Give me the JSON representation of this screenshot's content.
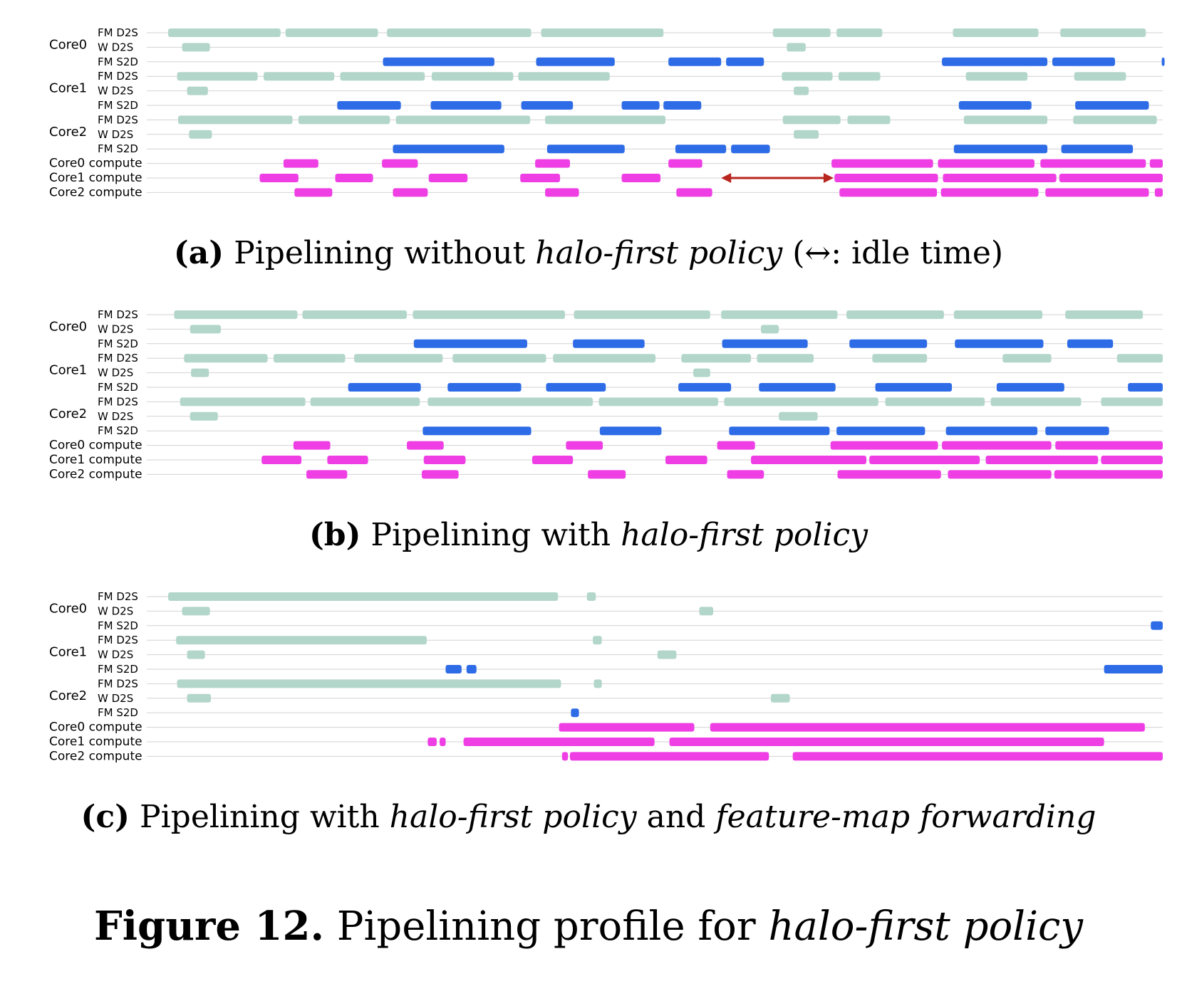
{
  "colors": {
    "fm_d2s": "#b3d6cb",
    "w_d2s": "#b3d6cb",
    "fm_s2d": "#2e6be6",
    "compute": "#ee3ee4",
    "gridline": "#d2d2d2",
    "arrow": "#b8261e"
  },
  "row_labels": [
    "FM D2S",
    "W D2S",
    "FM S2D",
    "FM D2S",
    "W D2S",
    "FM S2D",
    "FM D2S",
    "W D2S",
    "FM S2D",
    "Core0 compute",
    "Core1 compute",
    "Core2 compute"
  ],
  "core_labels": [
    "Core0",
    "Core1",
    "Core2"
  ],
  "figure": {
    "label": "Figure 12.",
    "title_plain": "Pipelining profile for",
    "title_italic": "halo-first policy"
  },
  "panels": [
    {
      "caption": {
        "label": "(a)",
        "text1": "Pipelining without",
        "italic1": "halo-first policy",
        "text2": "(↔: idle time)",
        "italic2": "",
        "text3": ""
      }
    },
    {
      "caption": {
        "label": "(b)",
        "text1": "Pipelining with",
        "italic1": "halo-first policy",
        "text2": "",
        "italic2": "",
        "text3": ""
      }
    },
    {
      "caption": {
        "label": "(c)",
        "text1": "Pipelining with",
        "italic1": "halo-first policy",
        "text2": "and",
        "italic2": "feature-map forwarding",
        "text3": ""
      }
    }
  ],
  "chart_data": [
    {
      "type": "gantt",
      "x_range": [
        0,
        1000
      ],
      "rows": [
        {
          "core": "Core0",
          "name": "FM D2S",
          "type": "fm_d2s",
          "segments": [
            [
              0,
              113
            ],
            [
              118,
              211
            ],
            [
              220,
              365
            ],
            [
              375,
              498
            ],
            [
              608,
              666
            ],
            [
              672,
              718
            ],
            [
              789,
              875
            ],
            [
              897,
              983
            ]
          ]
        },
        {
          "core": "Core0",
          "name": "W D2S",
          "type": "w_d2s",
          "segments": [
            [
              14,
              42
            ],
            [
              622,
              641
            ]
          ]
        },
        {
          "core": "Core0",
          "name": "FM S2D",
          "type": "fm_s2d",
          "segments": [
            [
              216,
              328
            ],
            [
              370,
              449
            ],
            [
              503,
              556
            ],
            [
              561,
              599
            ],
            [
              778,
              884
            ],
            [
              889,
              952
            ],
            [
              999,
              1000
            ]
          ]
        },
        {
          "core": "Core1",
          "name": "FM D2S",
          "type": "fm_d2s",
          "segments": [
            [
              9,
              90
            ],
            [
              96,
              167
            ],
            [
              173,
              258
            ],
            [
              265,
              347
            ],
            [
              352,
              444
            ],
            [
              617,
              668
            ],
            [
              674,
              716
            ],
            [
              802,
              864
            ],
            [
              911,
              963
            ]
          ]
        },
        {
          "core": "Core1",
          "name": "W D2S",
          "type": "w_d2s",
          "segments": [
            [
              19,
              40
            ],
            [
              629,
              644
            ]
          ]
        },
        {
          "core": "Core1",
          "name": "FM S2D",
          "type": "fm_s2d",
          "segments": [
            [
              170,
              234
            ],
            [
              264,
              335
            ],
            [
              355,
              407
            ],
            [
              456,
              494
            ],
            [
              498,
              536
            ],
            [
              795,
              868
            ],
            [
              912,
              986
            ]
          ]
        },
        {
          "core": "Core2",
          "name": "FM D2S",
          "type": "fm_d2s",
          "segments": [
            [
              10,
              125
            ],
            [
              131,
              223
            ],
            [
              229,
              364
            ],
            [
              379,
              500
            ],
            [
              618,
              676
            ],
            [
              683,
              726
            ],
            [
              800,
              884
            ],
            [
              910,
              994
            ]
          ]
        },
        {
          "core": "Core2",
          "name": "W D2S",
          "type": "w_d2s",
          "segments": [
            [
              21,
              44
            ],
            [
              629,
              654
            ]
          ]
        },
        {
          "core": "Core2",
          "name": "FM S2D",
          "type": "fm_s2d",
          "segments": [
            [
              226,
              338
            ],
            [
              381,
              459
            ],
            [
              510,
              561
            ],
            [
              566,
              605
            ],
            [
              790,
              884
            ],
            [
              898,
              970
            ]
          ]
        },
        {
          "core": "Core0",
          "name": "Core0 compute",
          "type": "compute",
          "segments": [
            [
              116,
              151
            ],
            [
              215,
              251
            ],
            [
              369,
              404
            ],
            [
              503,
              537
            ],
            [
              667,
              769
            ],
            [
              774,
              871
            ],
            [
              877,
              983
            ],
            [
              987,
              1000
            ]
          ]
        },
        {
          "core": "Core1",
          "name": "Core1 compute",
          "type": "compute",
          "segments": [
            [
              92,
              131
            ],
            [
              168,
              206
            ],
            [
              262,
              301
            ],
            [
              354,
              394
            ],
            [
              456,
              495
            ],
            [
              670,
              774
            ],
            [
              779,
              893
            ],
            [
              896,
              1000
            ]
          ]
        },
        {
          "core": "Core2",
          "name": "Core2 compute",
          "type": "compute",
          "segments": [
            [
              127,
              165
            ],
            [
              226,
              261
            ],
            [
              379,
              413
            ],
            [
              511,
              547
            ],
            [
              675,
              773
            ],
            [
              777,
              875
            ],
            [
              882,
              986
            ],
            [
              992,
              1000
            ]
          ]
        }
      ],
      "annotations": [
        {
          "type": "double-arrow",
          "row": "Core1 compute",
          "from": 556,
          "to": 669
        }
      ]
    },
    {
      "type": "gantt",
      "x_range": [
        0,
        1000
      ],
      "rows": [
        {
          "core": "Core0",
          "name": "FM D2S",
          "type": "fm_d2s",
          "segments": [
            [
              6,
              130
            ],
            [
              135,
              240
            ],
            [
              246,
              399
            ],
            [
              408,
              545
            ],
            [
              556,
              673
            ],
            [
              682,
              780
            ],
            [
              790,
              879
            ],
            [
              902,
              980
            ]
          ]
        },
        {
          "core": "Core0",
          "name": "W D2S",
          "type": "w_d2s",
          "segments": [
            [
              22,
              53
            ],
            [
              596,
              614
            ]
          ]
        },
        {
          "core": "Core0",
          "name": "FM S2D",
          "type": "fm_s2d",
          "segments": [
            [
              247,
              361
            ],
            [
              407,
              479
            ],
            [
              557,
              643
            ],
            [
              685,
              763
            ],
            [
              791,
              880
            ],
            [
              904,
              950
            ]
          ]
        },
        {
          "core": "Core1",
          "name": "FM D2S",
          "type": "fm_d2s",
          "segments": [
            [
              16,
              100
            ],
            [
              106,
              178
            ],
            [
              187,
              276
            ],
            [
              286,
              380
            ],
            [
              387,
              490
            ],
            [
              516,
              586
            ],
            [
              592,
              649
            ],
            [
              708,
              763
            ],
            [
              839,
              888
            ],
            [
              954,
              1000
            ]
          ]
        },
        {
          "core": "Core1",
          "name": "W D2S",
          "type": "w_d2s",
          "segments": [
            [
              23,
              41
            ],
            [
              528,
              545
            ]
          ]
        },
        {
          "core": "Core1",
          "name": "FM S2D",
          "type": "fm_s2d",
          "segments": [
            [
              181,
              254
            ],
            [
              281,
              355
            ],
            [
              380,
              440
            ],
            [
              513,
              566
            ],
            [
              594,
              671
            ],
            [
              711,
              788
            ],
            [
              833,
              901
            ],
            [
              965,
              1000
            ]
          ]
        },
        {
          "core": "Core2",
          "name": "FM D2S",
          "type": "fm_d2s",
          "segments": [
            [
              12,
              138
            ],
            [
              143,
              253
            ],
            [
              261,
              427
            ],
            [
              433,
              553
            ],
            [
              559,
              714
            ],
            [
              721,
              821
            ],
            [
              827,
              918
            ],
            [
              938,
              1000
            ]
          ]
        },
        {
          "core": "Core2",
          "name": "W D2S",
          "type": "w_d2s",
          "segments": [
            [
              22,
              50
            ],
            [
              614,
              653
            ]
          ]
        },
        {
          "core": "Core2",
          "name": "FM S2D",
          "type": "fm_s2d",
          "segments": [
            [
              256,
              365
            ],
            [
              434,
              496
            ],
            [
              564,
              665
            ],
            [
              672,
              761
            ],
            [
              782,
              874
            ],
            [
              882,
              946
            ]
          ]
        },
        {
          "core": "Core0",
          "name": "Core0 compute",
          "type": "compute",
          "segments": [
            [
              126,
              163
            ],
            [
              240,
              277
            ],
            [
              400,
              437
            ],
            [
              552,
              590
            ],
            [
              666,
              774
            ],
            [
              778,
              888
            ],
            [
              892,
              1000
            ]
          ]
        },
        {
          "core": "Core1",
          "name": "Core1 compute",
          "type": "compute",
          "segments": [
            [
              94,
              134
            ],
            [
              160,
              201
            ],
            [
              257,
              299
            ],
            [
              366,
              407
            ],
            [
              500,
              542
            ],
            [
              586,
              702
            ],
            [
              705,
              816
            ],
            [
              822,
              935
            ],
            [
              938,
              1000
            ]
          ]
        },
        {
          "core": "Core2",
          "name": "Core2 compute",
          "type": "compute",
          "segments": [
            [
              139,
              180
            ],
            [
              255,
              292
            ],
            [
              422,
              460
            ],
            [
              562,
              599
            ],
            [
              673,
              777
            ],
            [
              784,
              888
            ],
            [
              891,
              1000
            ]
          ]
        }
      ]
    },
    {
      "type": "gantt",
      "x_range": [
        0,
        1000
      ],
      "rows": [
        {
          "core": "Core0",
          "name": "FM D2S",
          "type": "fm_d2s",
          "segments": [
            [
              0,
              392
            ],
            [
              421,
              430
            ]
          ]
        },
        {
          "core": "Core0",
          "name": "W D2S",
          "type": "w_d2s",
          "segments": [
            [
              14,
              42
            ],
            [
              534,
              548
            ]
          ]
        },
        {
          "core": "Core0",
          "name": "FM S2D",
          "type": "fm_s2d",
          "segments": [
            [
              988,
              1000
            ]
          ]
        },
        {
          "core": "Core1",
          "name": "FM D2S",
          "type": "fm_d2s",
          "segments": [
            [
              8,
              260
            ],
            [
              427,
              436
            ]
          ]
        },
        {
          "core": "Core1",
          "name": "W D2S",
          "type": "w_d2s",
          "segments": [
            [
              19,
              37
            ],
            [
              492,
              511
            ]
          ]
        },
        {
          "core": "Core1",
          "name": "FM S2D",
          "type": "fm_s2d",
          "segments": [
            [
              279,
              295
            ],
            [
              300,
              310
            ],
            [
              941,
              1000
            ]
          ]
        },
        {
          "core": "Core2",
          "name": "FM D2S",
          "type": "fm_d2s",
          "segments": [
            [
              9,
              395
            ],
            [
              428,
              436
            ]
          ]
        },
        {
          "core": "Core2",
          "name": "W D2S",
          "type": "w_d2s",
          "segments": [
            [
              19,
              43
            ],
            [
              606,
              625
            ]
          ]
        },
        {
          "core": "Core2",
          "name": "FM S2D",
          "type": "fm_s2d",
          "segments": [
            [
              405,
              413
            ]
          ]
        },
        {
          "core": "Core0",
          "name": "Core0 compute",
          "type": "compute",
          "segments": [
            [
              393,
              529
            ],
            [
              545,
              982
            ]
          ]
        },
        {
          "core": "Core1",
          "name": "Core1 compute",
          "type": "compute",
          "segments": [
            [
              261,
              270
            ],
            [
              273,
              279
            ],
            [
              297,
              489
            ],
            [
              504,
              941
            ]
          ]
        },
        {
          "core": "Core2",
          "name": "Core2 compute",
          "type": "compute",
          "segments": [
            [
              396,
              402
            ],
            [
              404,
              604
            ],
            [
              628,
              1000
            ]
          ]
        }
      ]
    }
  ]
}
